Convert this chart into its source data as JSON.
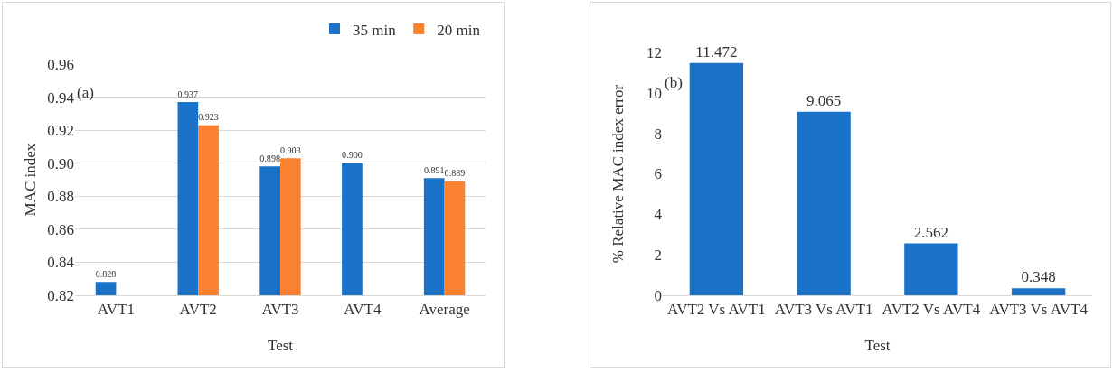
{
  "chart_data": [
    {
      "type": "bar",
      "annotations": [
        "(a)"
      ],
      "xlabel": "Test",
      "ylabel": "MAC index",
      "categories": [
        "AVT1",
        "AVT2",
        "AVT3",
        "AVT4",
        "Average"
      ],
      "series": [
        {
          "name": "35 min",
          "color": "#1a73c9",
          "values": [
            0.828,
            0.937,
            0.898,
            0.9,
            0.891
          ],
          "value_labels": [
            "0.828",
            "0.937",
            "0.898",
            "0.900",
            "0.891"
          ]
        },
        {
          "name": "20 min",
          "color": "#fb8230",
          "values": [
            null,
            0.923,
            0.903,
            null,
            0.889
          ],
          "value_labels": [
            null,
            "0.923",
            "0.903",
            null,
            "0.889"
          ]
        }
      ],
      "ylim": [
        0.82,
        0.96
      ],
      "yticks": [
        0.82,
        0.84,
        0.86,
        0.88,
        {
          "value": 0.9,
          "label": "0.90"
        },
        0.92,
        0.94,
        0.96
      ],
      "grid": "y",
      "legend": "top right"
    },
    {
      "type": "bar",
      "annotations": [
        "(b)"
      ],
      "xlabel": "Test",
      "ylabel": "% Relative MAC index error",
      "categories": [
        "AVT2 Vs AVT1",
        "AVT3 Vs AVT1",
        "AVT2 Vs AVT4",
        "AVT3 Vs AVT4"
      ],
      "values": [
        11.472,
        9.065,
        2.562,
        0.348
      ],
      "color": "#1a73c9",
      "data_labels": true,
      "ylim": [
        0,
        12
      ],
      "yticks": [
        0,
        2,
        4,
        6,
        8,
        10,
        12
      ],
      "grid": false,
      "legend": false
    }
  ]
}
